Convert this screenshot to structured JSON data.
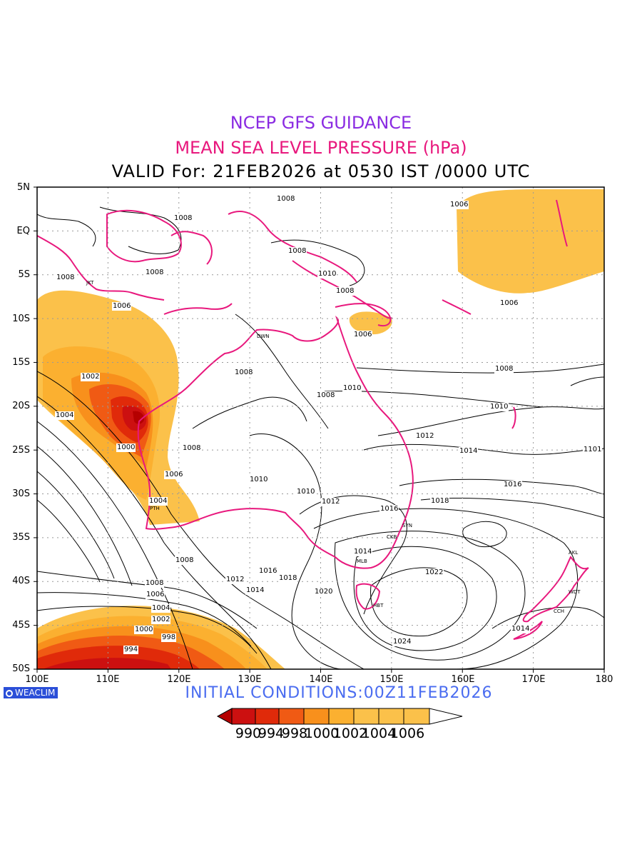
{
  "header": {
    "line1": "NCEP GFS GUIDANCE",
    "line2": "MEAN SEA LEVEL PRESSURE (hPa)",
    "line3": "VALID For: 21FEB2026 at 0530 IST /0000 UTC"
  },
  "colors": {
    "line1": "#8a2be2",
    "line2": "#e8187d",
    "coast": "#e8187d",
    "initial": "#4a6cf0",
    "brand_bg": "#2b4fd8",
    "shade_levels": [
      "#b50000",
      "#cc1010",
      "#e02a0a",
      "#f05a14",
      "#f8901c",
      "#fbb030",
      "#fbc14a"
    ]
  },
  "axes": {
    "lat_labels": [
      "5N",
      "EQ",
      "5S",
      "10S",
      "15S",
      "20S",
      "25S",
      "30S",
      "35S",
      "40S",
      "45S",
      "50S"
    ],
    "lon_labels": [
      "100E",
      "110E",
      "120E",
      "130E",
      "140E",
      "150E",
      "160E",
      "170E",
      "180"
    ]
  },
  "contour_labels": [
    "1008",
    "1008",
    "1008",
    "1008",
    "1008",
    "1008",
    "1010",
    "1008",
    "1006",
    "1006",
    "1006",
    "1006",
    "1008",
    "1008",
    "1010",
    "1008",
    "1010",
    "1002",
    "1004",
    "1000",
    "1008",
    "1006",
    "1010",
    "1010",
    "1012",
    "1004",
    "1012",
    "1014",
    "1101",
    "1016",
    "1018",
    "1016",
    "1008",
    "1014",
    "1022",
    "1012",
    "1016",
    "1018",
    "1014",
    "1020",
    "1008",
    "1006",
    "1004",
    "1002",
    "1000",
    "998",
    "994",
    "1024",
    "1014"
  ],
  "cities": [
    "JKT",
    "DWN",
    "PTH",
    "SYN",
    "CKB",
    "MLB",
    "HBT",
    "AKL",
    "WDT",
    "CCH"
  ],
  "colorbar": {
    "ticks": [
      "990",
      "994",
      "998",
      "1000",
      "1002",
      "1004",
      "1006"
    ]
  },
  "footer": {
    "brand": "WEACLIM",
    "initial_conditions": "INITIAL  CONDITIONS:00Z11FEB2026"
  }
}
